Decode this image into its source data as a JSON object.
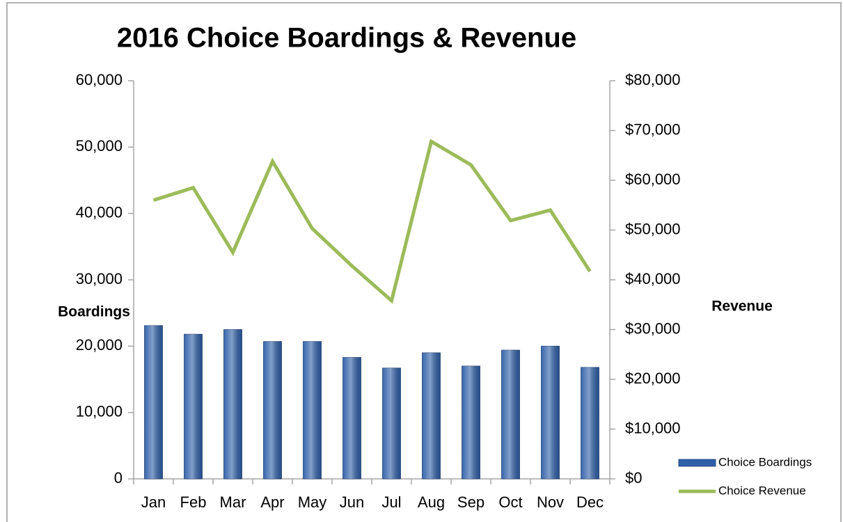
{
  "chart_data": {
    "type": "bar-line",
    "title": "2016 Choice Boardings & Revenue",
    "y_label": "Boardings",
    "y2_label": "Revenue",
    "categories": [
      "Jan",
      "Feb",
      "Mar",
      "Apr",
      "May",
      "Jun",
      "Jul",
      "Aug",
      "Sep",
      "Oct",
      "Nov",
      "Dec"
    ],
    "series": [
      {
        "name": "Choice Boardings",
        "type": "bar",
        "color": "#2f5fa8",
        "values": [
          23100,
          21800,
          22500,
          20700,
          20700,
          18300,
          16700,
          19000,
          17000,
          19400,
          20000,
          16800
        ]
      },
      {
        "name": "Choice Revenue",
        "type": "line",
        "axis": "y2",
        "color": "#9bbb59",
        "values": [
          56000,
          58500,
          45500,
          63800,
          50300,
          42800,
          35800,
          67800,
          63100,
          51900,
          54000,
          41700
        ]
      }
    ],
    "ylim": [
      0,
      60000
    ],
    "yticks": [
      0,
      {
        "value": 10000,
        "label": "10,000"
      },
      {
        "value": 20000,
        "label": "20,000"
      },
      {
        "value": 30000,
        "label": "30,000"
      },
      {
        "value": 40000,
        "label": "40,000"
      },
      {
        "value": 50000,
        "label": "50,000"
      },
      {
        "value": 60000,
        "label": "60,000"
      }
    ],
    "y2lim": [
      0,
      80000
    ],
    "y2ticks": [
      {
        "value": 0,
        "label": "$0"
      },
      {
        "value": 10000,
        "label": "$10,000"
      },
      {
        "value": 20000,
        "label": "$20,000"
      },
      {
        "value": 30000,
        "label": "$30,000"
      },
      {
        "value": 40000,
        "label": "$40,000"
      },
      {
        "value": 50000,
        "label": "$50,000"
      },
      {
        "value": 60000,
        "label": "$60,000"
      },
      {
        "value": 70000,
        "label": "$70,000"
      },
      {
        "value": 80000,
        "label": "$80,000"
      }
    ],
    "legend": "bottom-right"
  }
}
